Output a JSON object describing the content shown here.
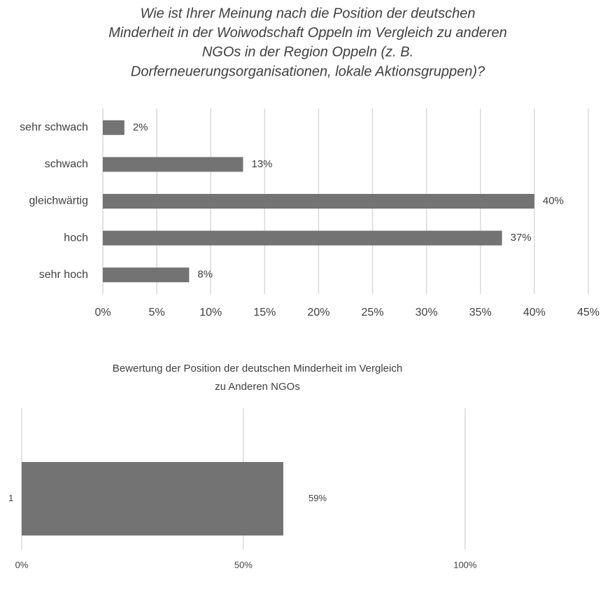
{
  "chart_data": [
    {
      "type": "hbar",
      "title": [
        "Wie ist Ihrer Meinung nach die Position der deutschen",
        "Minderheit in der Woiwodschaft Oppeln im Vergleich zu anderen",
        "NGOs in der Region Oppeln (z. B.",
        "Dorferneuerungsorganisationen, lokale Aktionsgruppen)?"
      ],
      "categories": [
        "sehr schwach",
        "schwach",
        "gleichwärtig",
        "hoch",
        "sehr hoch"
      ],
      "values": [
        2,
        13,
        40,
        37,
        8
      ],
      "value_labels": [
        "2%",
        "13%",
        "40%",
        "37%",
        "8%"
      ],
      "color": "#737373",
      "xlim": [
        0,
        45
      ],
      "xticks": [
        {
          "value": 0,
          "label": "0%"
        },
        {
          "value": 5,
          "label": "5%"
        },
        {
          "value": 10,
          "label": "10%"
        },
        {
          "value": 15,
          "label": "15%"
        },
        {
          "value": 20,
          "label": "20%"
        },
        {
          "value": 25,
          "label": "25%"
        },
        {
          "value": 30,
          "label": "30%"
        },
        {
          "value": 35,
          "label": "35%"
        },
        {
          "value": 40,
          "label": "40%"
        },
        {
          "value": 45,
          "label": "45%"
        }
      ],
      "grid": true
    },
    {
      "type": "hbar",
      "title": [
        "Bewertung der Position der deutschen Minderheit im Vergleich",
        "zu Anderen NGOs"
      ],
      "categories": [
        "1"
      ],
      "values": [
        59
      ],
      "value_labels": [
        "59%"
      ],
      "color": "#737373",
      "xlim": [
        0,
        130
      ],
      "xticks": [
        {
          "value": 0,
          "label": "0%"
        },
        {
          "value": 50,
          "label": "50%"
        },
        {
          "value": 100,
          "label": "100%"
        }
      ],
      "grid": true
    }
  ]
}
